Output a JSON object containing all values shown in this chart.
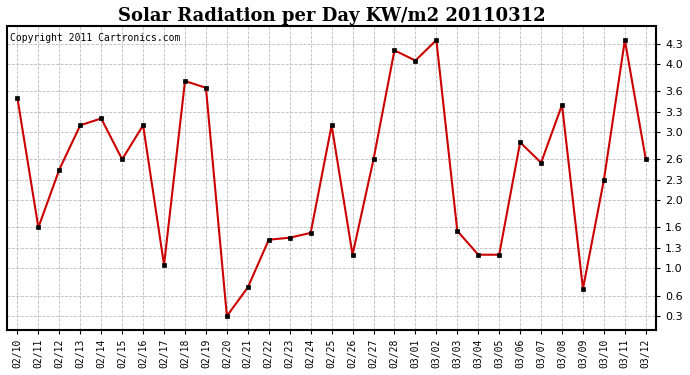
{
  "title": "Solar Radiation per Day KW/m2 20110312",
  "copyright_text": "Copyright 2011 Cartronics.com",
  "dates": [
    "02/10",
    "02/11",
    "02/12",
    "02/13",
    "02/14",
    "02/15",
    "02/16",
    "02/17",
    "02/18",
    "02/19",
    "02/20",
    "02/21",
    "02/22",
    "02/23",
    "02/24",
    "02/25",
    "02/26",
    "02/27",
    "02/28",
    "03/01",
    "03/02",
    "03/03",
    "03/04",
    "03/05",
    "03/06",
    "03/07",
    "03/08",
    "03/09",
    "03/10",
    "03/11",
    "03/12"
  ],
  "values": [
    3.5,
    1.6,
    2.45,
    3.1,
    3.2,
    2.6,
    3.1,
    1.05,
    3.75,
    3.65,
    0.3,
    0.72,
    1.42,
    1.45,
    1.52,
    3.1,
    1.2,
    2.6,
    4.2,
    4.05,
    4.35,
    1.55,
    1.2,
    1.2,
    2.85,
    2.55,
    3.4,
    0.7,
    2.3,
    4.35,
    2.6
  ],
  "line_color": "#cc0000",
  "marker_color": "#000000",
  "bg_color": "#ffffff",
  "grid_color": "#bbbbbb",
  "yticks": [
    0.3,
    0.6,
    1.0,
    1.3,
    1.6,
    2.0,
    2.3,
    2.6,
    3.0,
    3.3,
    3.6,
    4.0,
    4.3
  ],
  "ylim": [
    0.1,
    4.55
  ],
  "title_fontsize": 13,
  "copyright_fontsize": 7,
  "tick_fontsize": 7,
  "ytick_fontsize": 8
}
